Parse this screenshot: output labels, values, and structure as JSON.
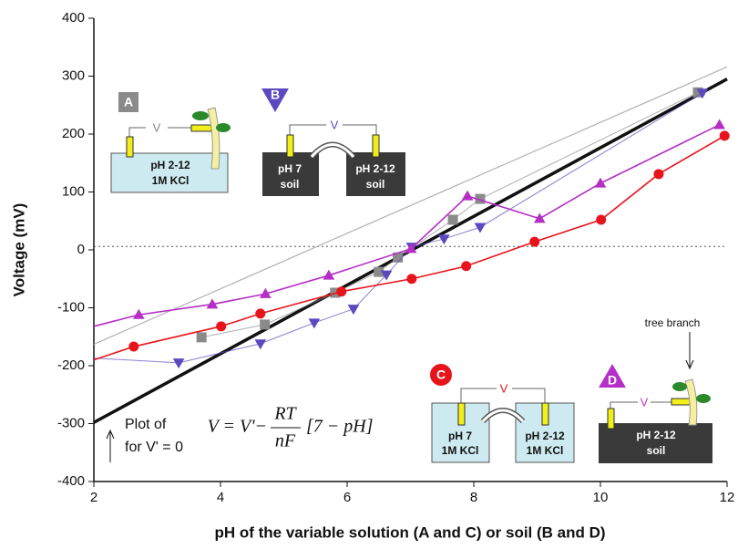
{
  "chart_data": {
    "type": "line",
    "xlabel": "pH of the variable solution (A and C) or soil (B and D)",
    "ylabel": "Voltage (mV)",
    "xlim": [
      2,
      12
    ],
    "ylim": [
      -400,
      400
    ],
    "xticks": [
      2,
      4,
      6,
      8,
      10,
      12
    ],
    "yticks": [
      -400,
      -300,
      -200,
      -100,
      0,
      100,
      200,
      300,
      400
    ],
    "reference_line": 6,
    "series": [
      {
        "name": "A",
        "color": "#8a8a8a",
        "marker": "square",
        "x": [
          3.7,
          4.7,
          5.81,
          6.5,
          6.8,
          7.67,
          8.1,
          11.54
        ],
        "values": [
          -151,
          -129,
          -74,
          -38,
          -13,
          52,
          88,
          272
        ]
      },
      {
        "name": "B",
        "color": "#5b49c0",
        "marker": "triangle-down",
        "x": [
          2,
          3.34,
          4.63,
          5.48,
          6.1,
          6.62,
          7.02,
          7.53,
          8.1,
          11.61
        ],
        "values": [
          -187,
          -195,
          -162,
          -126,
          -102,
          -43,
          5,
          19,
          39,
          271
        ]
      },
      {
        "name": "C",
        "color": "#e8141b",
        "marker": "circle",
        "x": [
          2,
          2.63,
          4.01,
          4.63,
          5.91,
          7.02,
          7.88,
          8.96,
          10.01,
          10.92,
          11.96
        ],
        "values": [
          -190,
          -167,
          -132,
          -110,
          -72,
          -50,
          -28,
          14,
          52,
          131,
          197
        ]
      },
      {
        "name": "D",
        "color": "#b52fc6",
        "marker": "triangle-up",
        "x": [
          2,
          2.71,
          3.87,
          4.71,
          5.71,
          7.01,
          7.9,
          9.04,
          10.0,
          11.88
        ],
        "values": [
          -132,
          -112,
          -94,
          -76,
          -44,
          2,
          93,
          54,
          115,
          216
        ]
      }
    ],
    "lines": [
      {
        "color": "#b0b0b0",
        "width": 1.2,
        "x": [
          2,
          12
        ],
        "values": [
          -163,
          316
        ]
      },
      {
        "color": "#111111",
        "width": 3.5,
        "x": [
          2,
          12
        ],
        "values": [
          -298,
          295
        ]
      }
    ],
    "annotation": [
      "Plot of",
      "for V' = 0"
    ],
    "equation": [
      "V = V'−",
      "RT",
      "nF",
      "[7 − pH]"
    ],
    "inset_texts": [
      "pH 2-12",
      "1M KCl",
      "V",
      "pH 7",
      "soil",
      "pH 2-12",
      "soil",
      "V",
      "pH 7",
      "1M KCl",
      "pH 2-12",
      "1M KCl",
      "V",
      "pH 2-12",
      "soil",
      "V",
      "tree branch"
    ]
  }
}
